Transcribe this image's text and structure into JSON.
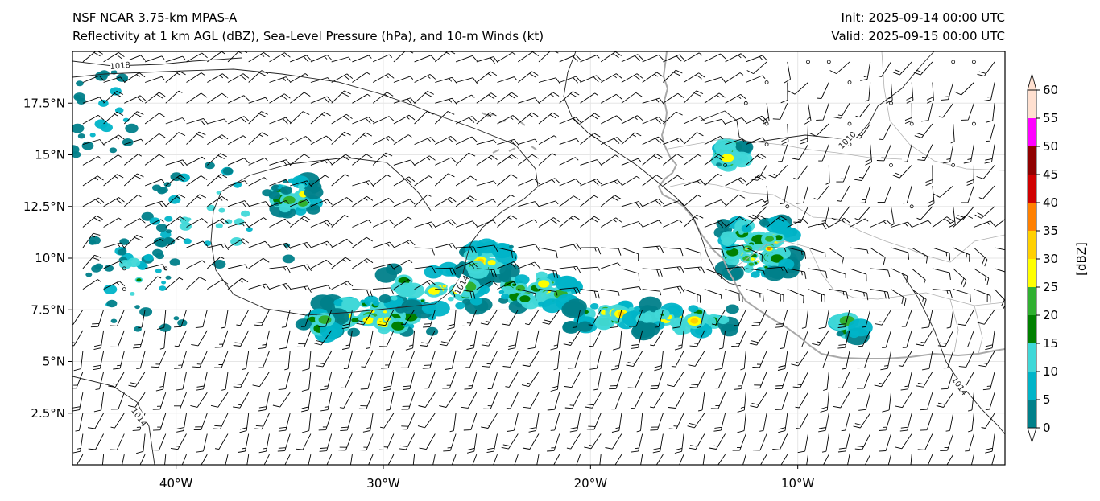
{
  "header": {
    "title_left_line1": "NSF NCAR 3.75-km MPAS-A",
    "title_left_line2": "Reflectivity at 1 km AGL (dBZ), Sea-Level Pressure (hPa), and 10-m Winds (kt)",
    "title_right_line1": "Init: 2025-09-14 00:00 UTC",
    "title_right_line2": "Valid: 2025-09-15 00:00 UTC"
  },
  "map": {
    "lon_range": [
      -45,
      0
    ],
    "lat_range": [
      0,
      20
    ],
    "lon_ticks": [
      {
        "value": -40,
        "label": "40°W"
      },
      {
        "value": -30,
        "label": "30°W"
      },
      {
        "value": -20,
        "label": "20°W"
      },
      {
        "value": -10,
        "label": "10°W"
      }
    ],
    "lat_ticks": [
      {
        "value": 2.5,
        "label": "2.5°N"
      },
      {
        "value": 5,
        "label": "5°N"
      },
      {
        "value": 7.5,
        "label": "7.5°N"
      },
      {
        "value": 10,
        "label": "10°N"
      },
      {
        "value": 12.5,
        "label": "12.5°N"
      },
      {
        "value": 15,
        "label": "15°N"
      },
      {
        "value": 17.5,
        "label": "17.5°N"
      }
    ],
    "isobar_labels": [
      {
        "text": "1018",
        "lon": -42.7,
        "lat": 19.3
      },
      {
        "text": "1014",
        "lon": -26.2,
        "lat": 8.7
      },
      {
        "text": "1010",
        "lon": -7.6,
        "lat": 15.7
      },
      {
        "text": "1014",
        "lon": -41.8,
        "lat": 2.3
      },
      {
        "text": "1014",
        "lon": -2.2,
        "lat": 3.8
      }
    ]
  },
  "colorbar": {
    "label": "[dBZ]",
    "levels": [
      0,
      5,
      10,
      15,
      20,
      25,
      30,
      35,
      40,
      45,
      50,
      55,
      60
    ],
    "tick_labels": [
      "0",
      "5",
      "10",
      "15",
      "20",
      "25",
      "30",
      "35",
      "40",
      "45",
      "50",
      "55",
      "60"
    ],
    "colors": [
      "#ffffff",
      "#00808a",
      "#00b4c8",
      "#40d8d8",
      "#008000",
      "#30b030",
      "#ffff00",
      "#ffd000",
      "#ff8000",
      "#d00000",
      "#900000",
      "#ff00ff",
      "#ffe0d0"
    ]
  },
  "colors": {
    "isobar": "#222222",
    "coastline": "#a8a8a8",
    "barb": "#000000"
  }
}
